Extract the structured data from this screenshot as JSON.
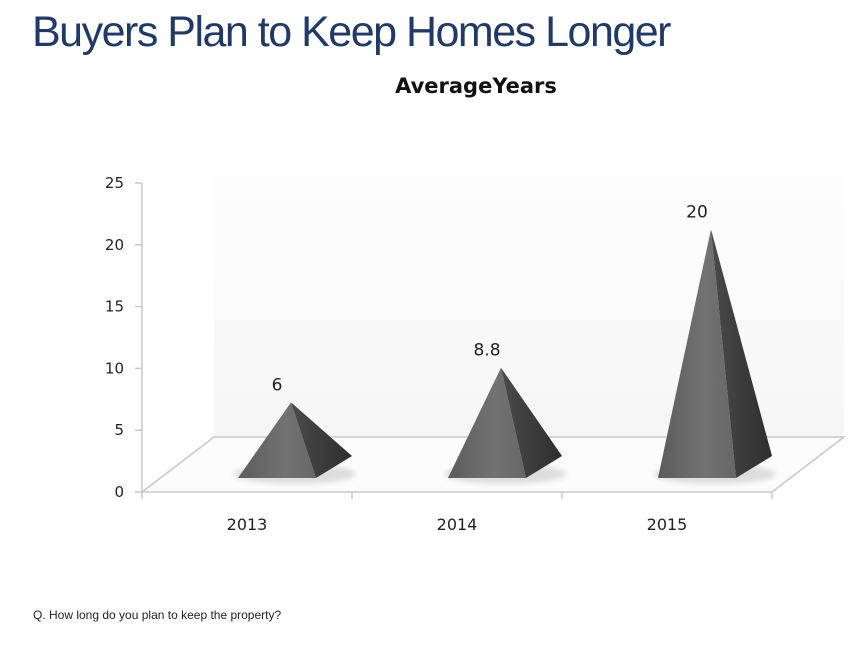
{
  "slide": {
    "title": "Buyers Plan to Keep Homes Longer",
    "footnote": "Q.  How long do you plan to keep the property?"
  },
  "chart_data": {
    "type": "bar",
    "title": "AverageYears",
    "xlabel": "",
    "ylabel": "",
    "categories": [
      "2013",
      "2014",
      "2015"
    ],
    "values": [
      6,
      8.8,
      20
    ],
    "value_labels": [
      "6",
      "8.8",
      "20"
    ],
    "ylim": [
      0,
      25
    ],
    "yticks": [
      0,
      5,
      10,
      15,
      20,
      25
    ],
    "ytick_labels": [
      "0",
      "5",
      "10",
      "15",
      "20",
      "25"
    ],
    "grid": false,
    "legend": "none",
    "mark_shape": "3d-pyramid",
    "colors": {
      "title": "#1f3a68",
      "mark_face": "#6a6a6a",
      "mark_side": "#3f3f3f",
      "axis": "#c8c8c8"
    }
  }
}
